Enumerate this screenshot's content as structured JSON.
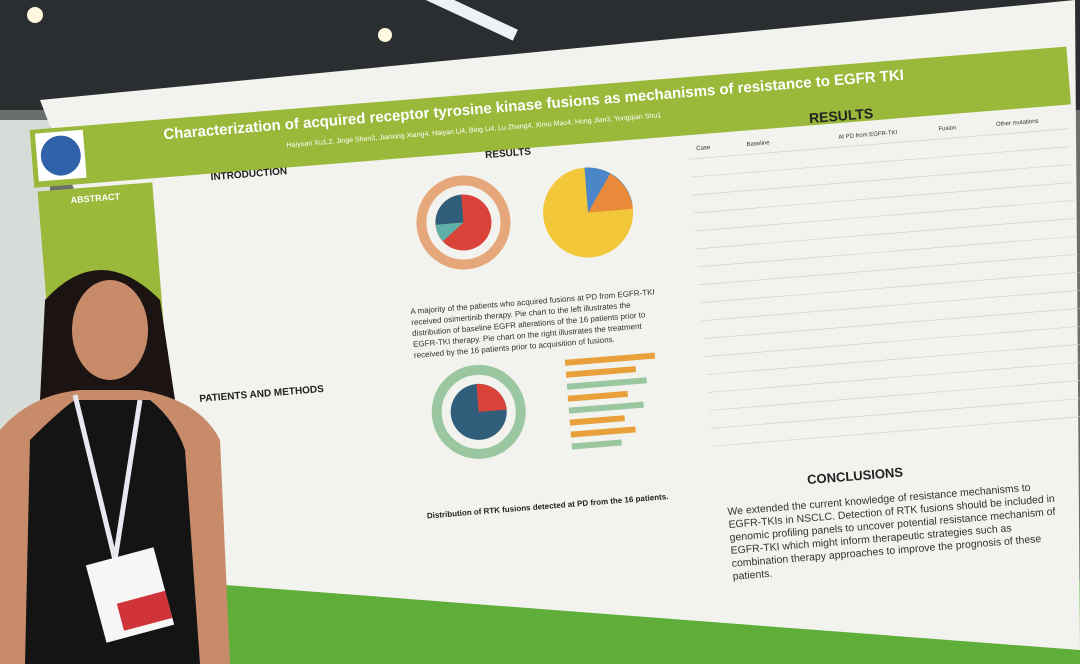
{
  "poster": {
    "title": "Characterization of acquired receptor tyrosine kinase fusions as mechanisms of resistance to EGFR TKI",
    "authors": "Haiyuan Xu1,2, Jinge Shen3, Jianxing Xiang4, Haiyan Li4, Bing Li4, Lu Zhang4, Xinru Mao4, Hong Jian3, Yongqian Shu1",
    "abstract_heading": "ABSTRACT",
    "introduction_heading": "INTRODUCTION",
    "methods_heading": "PATIENTS AND METHODS",
    "results_heading": "RESULTS",
    "results_heading_right": "RESULTS",
    "results_caption": [
      "A majority of the patients who acquired fusions at PD from EGFR-TKI",
      "received osimertinib therapy. Pie chart to the left illustrates the",
      "distribution of baseline EGFR alterations of the 16 patients prior to",
      "EGFR-TKI therapy. Pie chart on the right illustrates the treatment",
      "received by the 16 patients prior to acquisition of fusions."
    ],
    "fusion_caption": "Distribution of RTK fusions detected at PD from the 16 patients.",
    "table_headers": [
      "Case",
      "Baseline",
      "At PD from EGFR-TKI",
      "Fusion",
      "Other mutations"
    ],
    "conclusions_heading": "CONCLUSIONS",
    "conclusions": [
      "We extended the current knowledge of resistance mechanisms to",
      "EGFR-TKIs in NSCLC. Detection of RTK fusions should be included in",
      "genomic profiling panels to uncover potential resistance mechanism of",
      "EGFR-TKI which might inform therapeutic strategies such as",
      "combination therapy approaches to improve the prognosis of these",
      "patients."
    ]
  }
}
